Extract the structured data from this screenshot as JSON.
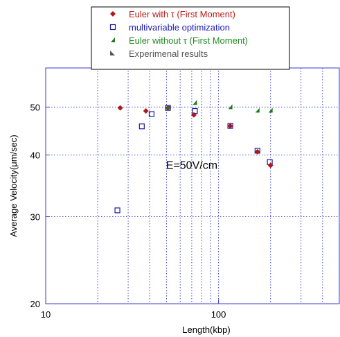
{
  "chart_data": {
    "type": "scatter",
    "x_scale": "log",
    "y_scale": "log",
    "xlabel": "Length(kbp)",
    "ylabel": "Average Velocity(μm/sec)",
    "xlim": [
      10,
      500
    ],
    "ylim": [
      20,
      60
    ],
    "x_ticks": [
      10,
      100
    ],
    "y_ticks": [
      20,
      30,
      40,
      50
    ],
    "grid": true,
    "legend_position": "top-center",
    "annotations": [
      {
        "text": "E=50V/cm",
        "x": 70,
        "y": 37.5
      }
    ],
    "series": [
      {
        "name": "Euler with τ (First Moment)",
        "marker": "diamond",
        "color": "#b01818",
        "points": [
          {
            "x": 27,
            "y": 49.8
          },
          {
            "x": 38,
            "y": 49.1
          },
          {
            "x": 51,
            "y": 49.8
          },
          {
            "x": 72,
            "y": 48.2
          },
          {
            "x": 117,
            "y": 45.8
          },
          {
            "x": 168,
            "y": 40.6
          },
          {
            "x": 200,
            "y": 38.1
          }
        ]
      },
      {
        "name": "multivariable optimization",
        "marker": "square-open",
        "color": "#1a1aa8",
        "points": [
          {
            "x": 26,
            "y": 30.9
          },
          {
            "x": 36,
            "y": 45.7
          },
          {
            "x": 41,
            "y": 48.4
          },
          {
            "x": 51,
            "y": 49.8
          },
          {
            "x": 73,
            "y": 49.1
          },
          {
            "x": 117,
            "y": 45.8
          },
          {
            "x": 168,
            "y": 40.8
          },
          {
            "x": 198,
            "y": 38.7
          }
        ]
      },
      {
        "name": "Euler without τ (First Moment)",
        "marker": "triangle",
        "color": "#1f7a1f",
        "points": [
          {
            "x": 51,
            "y": 50.0
          },
          {
            "x": 73,
            "y": 51.0
          },
          {
            "x": 117,
            "y": 50.0
          },
          {
            "x": 168,
            "y": 49.2
          },
          {
            "x": 200,
            "y": 49.2
          }
        ]
      },
      {
        "name": "Experimenal results",
        "marker": "triangle-dark",
        "color": "#555555",
        "points": []
      }
    ]
  }
}
